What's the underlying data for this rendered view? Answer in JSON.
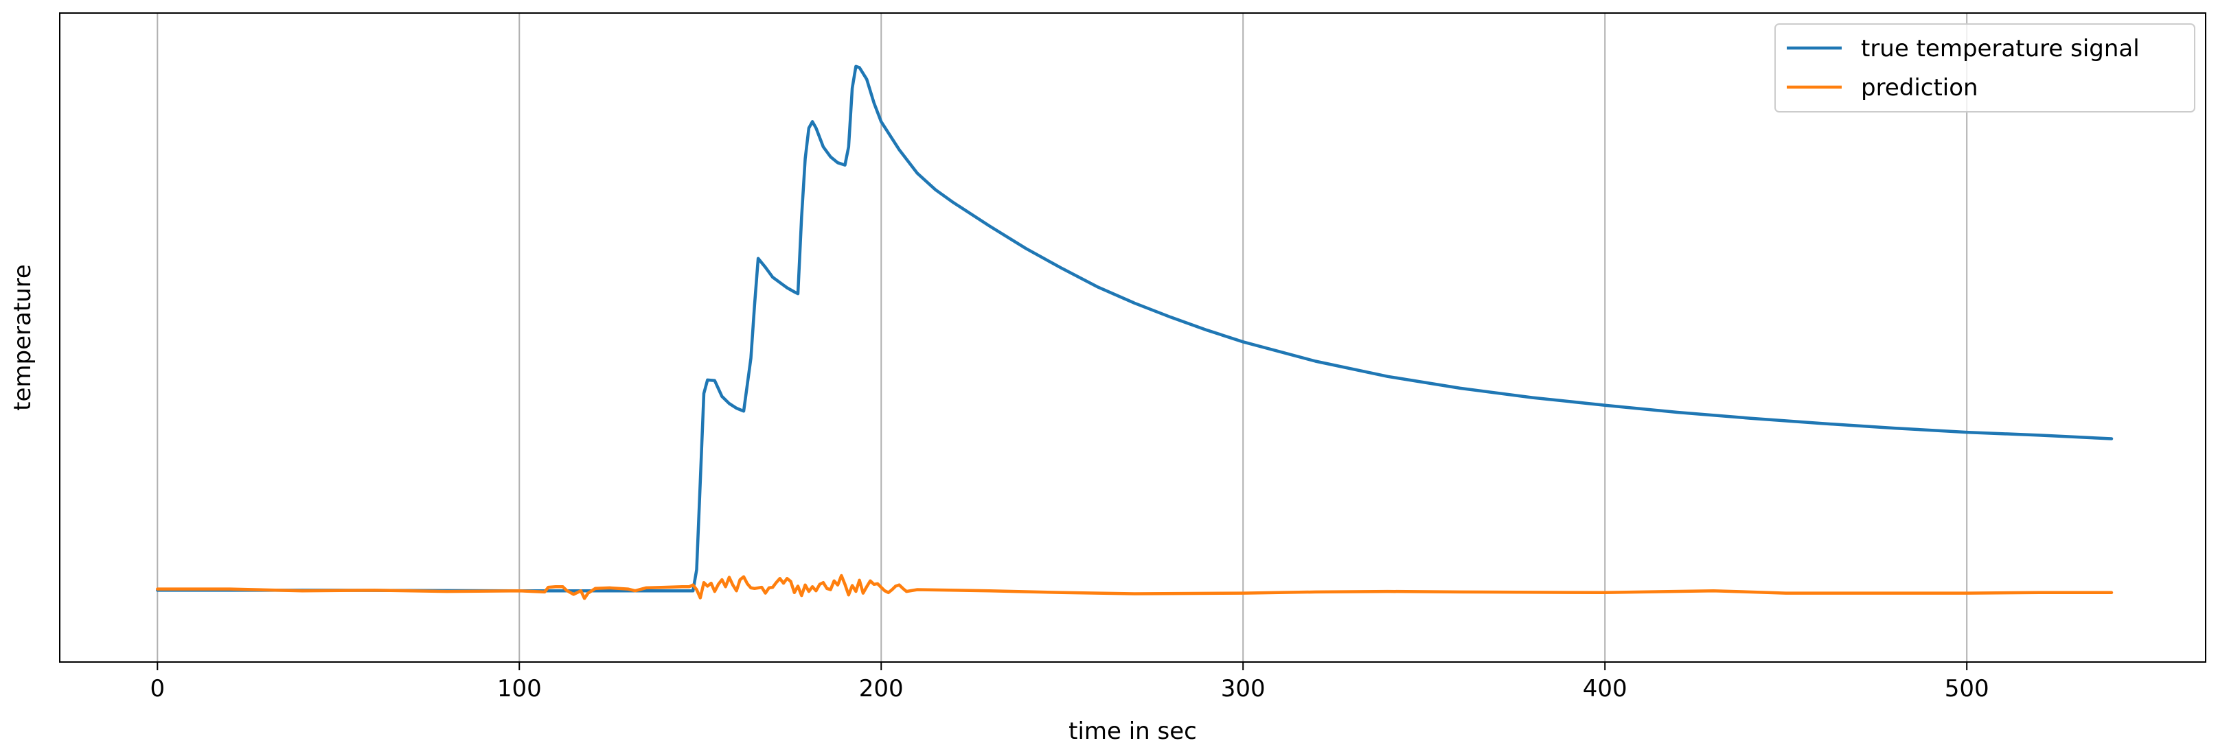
{
  "chart_data": {
    "type": "line",
    "title": "",
    "xlabel": "time in sec",
    "ylabel": "temperature",
    "xlim": [
      -27,
      566
    ],
    "ylim": [
      0,
      100
    ],
    "xticks": [
      0,
      100,
      200,
      300,
      400,
      500
    ],
    "xtick_labels": [
      "0",
      "100",
      "200",
      "300",
      "400",
      "500"
    ],
    "yticks_shown": false,
    "grid": "x-only",
    "legend_position": "top-right",
    "series": [
      {
        "name": "true temperature signal",
        "color": "#1f77b4",
        "points": [
          [
            0,
            6.5
          ],
          [
            50,
            6.5
          ],
          [
            100,
            6.4
          ],
          [
            148,
            6.4
          ],
          [
            149,
            10
          ],
          [
            150,
            25
          ],
          [
            151,
            40
          ],
          [
            152,
            42.3
          ],
          [
            154,
            42.2
          ],
          [
            156,
            39.5
          ],
          [
            158,
            38.3
          ],
          [
            160,
            37.5
          ],
          [
            162,
            37.0
          ],
          [
            164,
            46
          ],
          [
            165,
            55
          ],
          [
            166,
            63.0
          ],
          [
            168,
            61.5
          ],
          [
            170,
            59.8
          ],
          [
            172,
            58.9
          ],
          [
            174,
            58.0
          ],
          [
            176,
            57.3
          ],
          [
            177,
            57.0
          ],
          [
            178,
            70
          ],
          [
            179,
            80
          ],
          [
            180,
            85.2
          ],
          [
            181,
            86.3
          ],
          [
            182,
            85.2
          ],
          [
            184,
            82
          ],
          [
            186,
            80.3
          ],
          [
            188,
            79.3
          ],
          [
            190,
            78.9
          ],
          [
            191,
            82
          ],
          [
            192,
            92
          ],
          [
            193,
            95.7
          ],
          [
            194,
            95.5
          ],
          [
            196,
            93.5
          ],
          [
            198,
            89.5
          ],
          [
            200,
            86.3
          ],
          [
            205,
            81.5
          ],
          [
            210,
            77.5
          ],
          [
            215,
            74.7
          ],
          [
            220,
            72.5
          ],
          [
            230,
            68.5
          ],
          [
            240,
            64.7
          ],
          [
            250,
            61.3
          ],
          [
            260,
            58.1
          ],
          [
            270,
            55.4
          ],
          [
            280,
            53.0
          ],
          [
            290,
            50.8
          ],
          [
            300,
            48.8
          ],
          [
            320,
            45.5
          ],
          [
            340,
            42.9
          ],
          [
            360,
            40.9
          ],
          [
            380,
            39.3
          ],
          [
            400,
            38.0
          ],
          [
            420,
            36.8
          ],
          [
            440,
            35.8
          ],
          [
            460,
            34.9
          ],
          [
            480,
            34.1
          ],
          [
            500,
            33.4
          ],
          [
            520,
            32.9
          ],
          [
            540,
            32.3
          ]
        ]
      },
      {
        "name": "prediction",
        "color": "#ff7f0e",
        "points": [
          [
            0,
            6.7
          ],
          [
            20,
            6.7
          ],
          [
            40,
            6.4
          ],
          [
            60,
            6.5
          ],
          [
            80,
            6.3
          ],
          [
            100,
            6.4
          ],
          [
            107,
            6.2
          ],
          [
            108,
            7.0
          ],
          [
            110,
            7.1
          ],
          [
            112,
            7.1
          ],
          [
            113,
            6.5
          ],
          [
            115,
            5.8
          ],
          [
            117,
            6.4
          ],
          [
            118,
            5.1
          ],
          [
            119,
            6.0
          ],
          [
            121,
            6.8
          ],
          [
            125,
            6.9
          ],
          [
            130,
            6.7
          ],
          [
            132,
            6.4
          ],
          [
            135,
            6.9
          ],
          [
            140,
            7.0
          ],
          [
            145,
            7.1
          ],
          [
            147,
            7.1
          ],
          [
            148,
            7.4
          ],
          [
            149,
            6.6
          ],
          [
            150,
            5.2
          ],
          [
            151,
            7.8
          ],
          [
            152,
            7.2
          ],
          [
            153,
            7.7
          ],
          [
            154,
            6.3
          ],
          [
            155,
            7.5
          ],
          [
            156,
            8.3
          ],
          [
            157,
            7.1
          ],
          [
            158,
            8.7
          ],
          [
            159,
            7.4
          ],
          [
            160,
            6.4
          ],
          [
            161,
            8.3
          ],
          [
            162,
            8.8
          ],
          [
            163,
            7.6
          ],
          [
            164,
            6.9
          ],
          [
            165,
            6.8
          ],
          [
            167,
            7.0
          ],
          [
            168,
            6.0
          ],
          [
            169,
            6.9
          ],
          [
            170,
            7.0
          ],
          [
            171,
            7.8
          ],
          [
            172,
            8.5
          ],
          [
            173,
            7.7
          ],
          [
            174,
            8.5
          ],
          [
            175,
            8.0
          ],
          [
            176,
            6.1
          ],
          [
            177,
            7.2
          ],
          [
            178,
            5.6
          ],
          [
            179,
            7.4
          ],
          [
            180,
            6.3
          ],
          [
            181,
            7.1
          ],
          [
            182,
            6.4
          ],
          [
            183,
            7.5
          ],
          [
            184,
            7.8
          ],
          [
            185,
            6.8
          ],
          [
            186,
            6.6
          ],
          [
            187,
            8.1
          ],
          [
            188,
            7.4
          ],
          [
            189,
            9.0
          ],
          [
            190,
            7.5
          ],
          [
            191,
            5.7
          ],
          [
            192,
            7.3
          ],
          [
            193,
            6.3
          ],
          [
            194,
            8.2
          ],
          [
            195,
            6.0
          ],
          [
            196,
            7.1
          ],
          [
            197,
            8.1
          ],
          [
            198,
            7.5
          ],
          [
            199,
            7.6
          ],
          [
            200,
            7.0
          ],
          [
            201,
            6.4
          ],
          [
            202,
            6.1
          ],
          [
            203,
            6.6
          ],
          [
            204,
            7.2
          ],
          [
            205,
            7.4
          ],
          [
            206,
            6.8
          ],
          [
            207,
            6.3
          ],
          [
            210,
            6.6
          ],
          [
            230,
            6.4
          ],
          [
            250,
            6.1
          ],
          [
            270,
            5.9
          ],
          [
            300,
            6.0
          ],
          [
            320,
            6.2
          ],
          [
            340,
            6.3
          ],
          [
            360,
            6.2
          ],
          [
            400,
            6.1
          ],
          [
            430,
            6.4
          ],
          [
            450,
            6.0
          ],
          [
            470,
            6.0
          ],
          [
            500,
            6.0
          ],
          [
            520,
            6.1
          ],
          [
            540,
            6.1
          ]
        ]
      }
    ]
  }
}
